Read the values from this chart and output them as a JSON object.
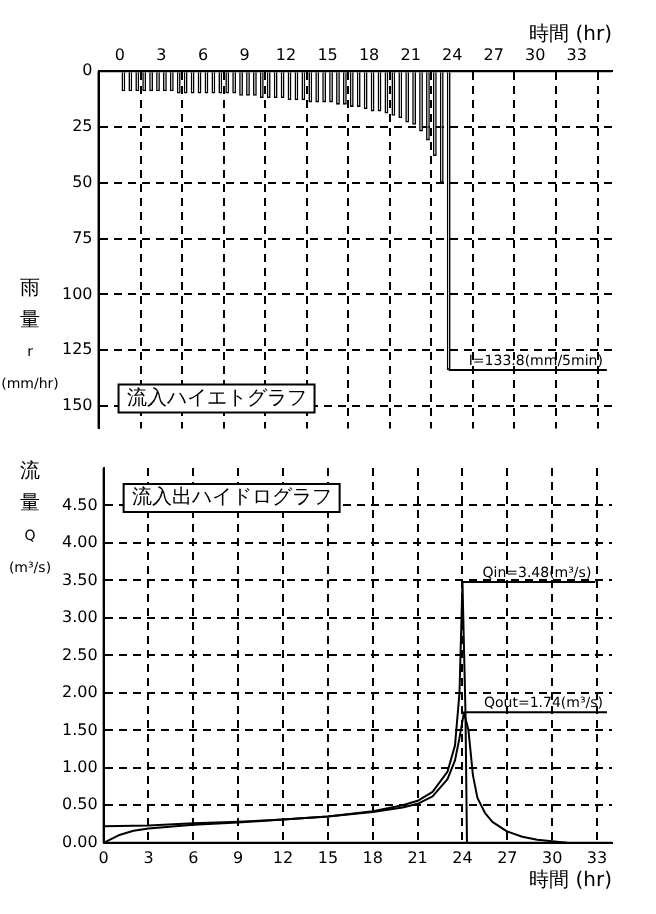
{
  "chart_data": [
    {
      "type": "bar",
      "xlabel": "時間 (hr)",
      "ylabel": "雨量 r (mm/hr)",
      "annotations": [
        "流入ハイエトグラフ",
        {
          "text": "I=133.8(mm/5min)",
          "x": 23.75,
          "y": 133.8
        }
      ],
      "x": [
        0.25,
        0.75,
        1.25,
        1.75,
        2.25,
        2.75,
        3.25,
        3.75,
        4.25,
        4.75,
        5.25,
        5.75,
        6.25,
        6.75,
        7.25,
        7.75,
        8.25,
        8.75,
        9.25,
        9.75,
        10.25,
        10.75,
        11.25,
        11.75,
        12.25,
        12.75,
        13.25,
        13.75,
        14.25,
        14.75,
        15.25,
        15.75,
        16.25,
        16.75,
        17.25,
        17.75,
        18.25,
        18.75,
        19.25,
        19.75,
        20.25,
        20.75,
        21.25,
        21.75,
        22.25,
        22.75,
        23.25,
        23.75
      ],
      "values": [
        9,
        9,
        9,
        9,
        9,
        9,
        9,
        9,
        10,
        10,
        10,
        10,
        10,
        10,
        10,
        10,
        10,
        11,
        11,
        11,
        12,
        12,
        12,
        12,
        13,
        13,
        13,
        14,
        14,
        14,
        14,
        15,
        15,
        16,
        16,
        17,
        18,
        18,
        19,
        20,
        21,
        23,
        24,
        27,
        31,
        38,
        50,
        133.8
      ],
      "color": "#000000",
      "xlim": [
        0,
        34
      ],
      "xticks": [
        0,
        3,
        6,
        9,
        12,
        15,
        18,
        21,
        24,
        27,
        30,
        33
      ],
      "ylim": [
        160,
        0
      ],
      "yticks": [
        0,
        25,
        50,
        75,
        100,
        125,
        150
      ],
      "grid": true,
      "legend": false
    },
    {
      "type": "line",
      "xlabel": "時間 (hr)",
      "ylabel": "流量 Q (m³/s)",
      "annotations": [
        "流入出ハイドログラフ",
        {
          "text": "Qin=3.48(m³/s)",
          "x": 24,
          "y": 3.48
        },
        {
          "text": "Qout=1.74(m³/s)",
          "x": 24.1,
          "y": 1.74
        }
      ],
      "series": [
        {
          "color": "#000000",
          "x": [
            0,
            3,
            6,
            9,
            12,
            15,
            18,
            20,
            21,
            22,
            23,
            23.5,
            23.8,
            24,
            24.2,
            24.3
          ],
          "values": [
            0.22,
            0.23,
            0.26,
            0.28,
            0.31,
            0.35,
            0.42,
            0.5,
            0.56,
            0.68,
            0.95,
            1.3,
            2.0,
            3.48,
            1.74,
            0
          ]
        },
        {
          "color": "#000000",
          "x": [
            0,
            1,
            2,
            3,
            6,
            9,
            12,
            15,
            18,
            20,
            21,
            22,
            23,
            23.5,
            23.8,
            24.1,
            24.4,
            24.7,
            25,
            25.5,
            26,
            27,
            28,
            29,
            30,
            31
          ],
          "values": [
            0,
            0.1,
            0.16,
            0.19,
            0.24,
            0.27,
            0.31,
            0.35,
            0.41,
            0.47,
            0.52,
            0.62,
            0.85,
            1.1,
            1.4,
            1.74,
            1.5,
            0.9,
            0.6,
            0.4,
            0.28,
            0.15,
            0.08,
            0.04,
            0.02,
            0
          ]
        }
      ],
      "xlim": [
        0,
        34
      ],
      "xticks": [
        0,
        3,
        6,
        9,
        12,
        15,
        18,
        21,
        24,
        27,
        30,
        33
      ],
      "ylim": [
        0,
        5
      ],
      "yticks": [
        {
          "value": 0,
          "label": "0.00"
        },
        {
          "value": 0.5,
          "label": "0.50"
        },
        {
          "value": 1,
          "label": "1.00"
        },
        {
          "value": 1.5,
          "label": "1.50"
        },
        {
          "value": 2,
          "label": "2.00"
        },
        {
          "value": 2.5,
          "label": "2.50"
        },
        {
          "value": 3,
          "label": "3.00"
        },
        {
          "value": 3.5,
          "label": "3.50"
        },
        {
          "value": 4,
          "label": "4.00"
        },
        {
          "value": 4.5,
          "label": "4.50"
        }
      ],
      "grid": true,
      "legend": false,
      "marker": "none",
      "line_style": "solid"
    }
  ]
}
